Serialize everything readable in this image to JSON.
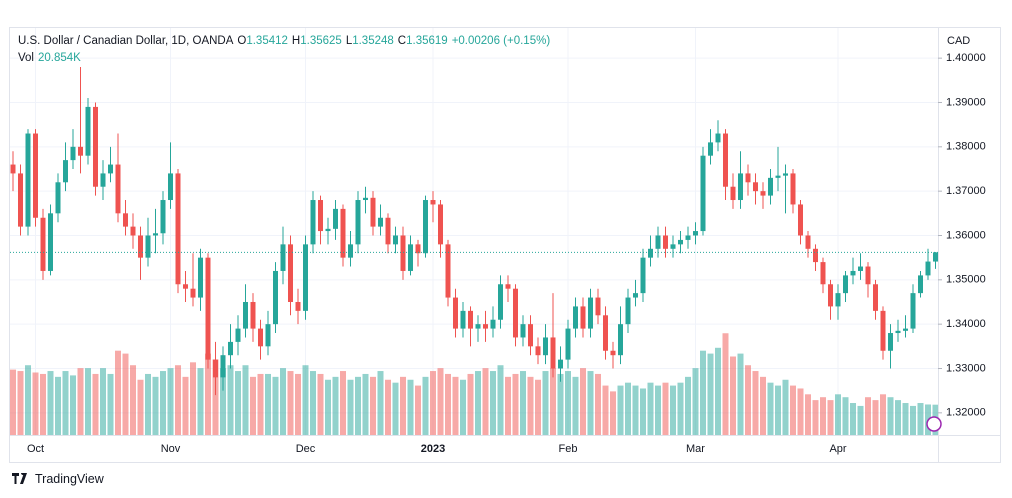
{
  "chart_data": {
    "type": "candlestick",
    "title": "U.S. Dollar / Canadian Dollar, 1D, OANDA",
    "ohlc_labels": [
      "O",
      "H",
      "L",
      "C"
    ],
    "ohlc_values": [
      1.35412,
      1.35625,
      1.35248,
      1.35619
    ],
    "change": "+0.00206 (+0.15%)",
    "volume_label": "Vol",
    "volume_value": "20.854K",
    "currency": "CAD",
    "brand": "TradingView",
    "up_color": "#26a69a",
    "down_color": "#ef5350",
    "grid": true,
    "ylim": [
      1.315,
      1.4068
    ],
    "yticks": [
      {
        "value": 1.32,
        "label": "1.32000"
      },
      {
        "value": 1.33,
        "label": "1.33000"
      },
      {
        "value": 1.34,
        "label": "1.34000"
      },
      {
        "value": 1.35,
        "label": "1.35000"
      },
      {
        "value": 1.36,
        "label": "1.36000"
      },
      {
        "value": 1.37,
        "label": "1.37000"
      },
      {
        "value": 1.38,
        "label": "1.38000"
      },
      {
        "value": 1.39,
        "label": "1.39000"
      },
      {
        "value": 1.4,
        "label": "1.40000"
      }
    ],
    "y2lim": [
      0,
      280
    ],
    "xticks": [
      {
        "value": 3,
        "label": "Oct"
      },
      {
        "value": 21,
        "label": "Nov"
      },
      {
        "value": 39,
        "label": "Dec"
      },
      {
        "value": 56,
        "label": "2023"
      },
      {
        "value": 74,
        "label": "Feb"
      },
      {
        "value": 91,
        "label": "Mar"
      },
      {
        "value": 110,
        "label": "Apr"
      }
    ],
    "open": [
      1.376,
      1.374,
      1.362,
      1.383,
      1.364,
      1.352,
      1.365,
      1.372,
      1.377,
      1.38,
      1.378,
      1.389,
      1.371,
      1.374,
      1.376,
      1.365,
      1.362,
      1.36,
      1.355,
      1.36,
      1.3605,
      1.368,
      1.374,
      1.349,
      1.348,
      1.346,
      1.355,
      1.332,
      1.328,
      1.333,
      1.336,
      1.339,
      1.345,
      1.339,
      1.335,
      1.34,
      1.352,
      1.358,
      1.345,
      1.343,
      1.358,
      1.368,
      1.361,
      1.3615,
      1.366,
      1.355,
      1.358,
      1.368,
      1.3685,
      1.362,
      1.364,
      1.358,
      1.36,
      1.352,
      1.358,
      1.356,
      1.368,
      1.367,
      1.358,
      1.346,
      1.339,
      1.343,
      1.339,
      1.34,
      1.339,
      1.341,
      1.349,
      1.348,
      1.337,
      1.34,
      1.335,
      1.333,
      1.337,
      1.33,
      1.332,
      1.339,
      1.344,
      1.339,
      1.346,
      1.342,
      1.334,
      1.333,
      1.34,
      1.346,
      1.347,
      1.355,
      1.357,
      1.36,
      1.357,
      1.358,
      1.359,
      1.36,
      1.361,
      1.378,
      1.381,
      1.383,
      1.371,
      1.368,
      1.374,
      1.372,
      1.37,
      1.369,
      1.373,
      1.3735,
      1.374,
      1.367,
      1.36,
      1.357,
      1.354,
      1.349,
      1.344,
      1.347,
      1.351,
      1.352,
      1.353,
      1.349,
      1.343,
      1.334,
      1.338,
      1.3385,
      1.339,
      1.347,
      1.351,
      1.35412
    ],
    "high": [
      1.379,
      1.376,
      1.384,
      1.384,
      1.366,
      1.367,
      1.374,
      1.381,
      1.384,
      1.398,
      1.391,
      1.39,
      1.377,
      1.38,
      1.383,
      1.368,
      1.365,
      1.362,
      1.364,
      1.366,
      1.37,
      1.381,
      1.375,
      1.352,
      1.356,
      1.357,
      1.356,
      1.336,
      1.335,
      1.34,
      1.342,
      1.349,
      1.347,
      1.341,
      1.343,
      1.354,
      1.362,
      1.36,
      1.348,
      1.36,
      1.37,
      1.369,
      1.364,
      1.368,
      1.367,
      1.361,
      1.37,
      1.371,
      1.37,
      1.367,
      1.365,
      1.362,
      1.362,
      1.36,
      1.359,
      1.369,
      1.37,
      1.368,
      1.359,
      1.348,
      1.345,
      1.344,
      1.342,
      1.343,
      1.344,
      1.351,
      1.351,
      1.349,
      1.342,
      1.342,
      1.337,
      1.34,
      1.347,
      1.335,
      1.341,
      1.346,
      1.346,
      1.348,
      1.348,
      1.344,
      1.336,
      1.344,
      1.348,
      1.35,
      1.357,
      1.36,
      1.362,
      1.362,
      1.36,
      1.361,
      1.362,
      1.363,
      1.38,
      1.384,
      1.386,
      1.384,
      1.374,
      1.379,
      1.376,
      1.374,
      1.372,
      1.375,
      1.38,
      1.376,
      1.375,
      1.368,
      1.361,
      1.358,
      1.355,
      1.35,
      1.349,
      1.352,
      1.355,
      1.356,
      1.354,
      1.35,
      1.344,
      1.34,
      1.341,
      1.342,
      1.349,
      1.352,
      1.357,
      1.35625
    ],
    "low": [
      1.37,
      1.36,
      1.36,
      1.362,
      1.35,
      1.351,
      1.363,
      1.37,
      1.375,
      1.374,
      1.376,
      1.369,
      1.368,
      1.372,
      1.363,
      1.36,
      1.357,
      1.35,
      1.353,
      1.356,
      1.358,
      1.366,
      1.347,
      1.345,
      1.344,
      1.343,
      1.33,
      1.324,
      1.325,
      1.33,
      1.333,
      1.337,
      1.336,
      1.332,
      1.333,
      1.338,
      1.349,
      1.342,
      1.34,
      1.341,
      1.356,
      1.358,
      1.358,
      1.359,
      1.353,
      1.353,
      1.356,
      1.365,
      1.36,
      1.36,
      1.356,
      1.356,
      1.35,
      1.351,
      1.353,
      1.355,
      1.363,
      1.355,
      1.344,
      1.337,
      1.337,
      1.335,
      1.336,
      1.336,
      1.337,
      1.339,
      1.345,
      1.335,
      1.335,
      1.333,
      1.331,
      1.331,
      1.328,
      1.327,
      1.33,
      1.337,
      1.337,
      1.337,
      1.34,
      1.332,
      1.33,
      1.331,
      1.338,
      1.344,
      1.345,
      1.353,
      1.355,
      1.355,
      1.355,
      1.356,
      1.357,
      1.358,
      1.36,
      1.376,
      1.379,
      1.368,
      1.366,
      1.366,
      1.369,
      1.367,
      1.366,
      1.367,
      1.37,
      1.365,
      1.365,
      1.358,
      1.355,
      1.352,
      1.347,
      1.341,
      1.341,
      1.345,
      1.349,
      1.35,
      1.346,
      1.341,
      1.332,
      1.33,
      1.336,
      1.337,
      1.338,
      1.346,
      1.35,
      1.35248
    ],
    "close": [
      1.374,
      1.362,
      1.383,
      1.364,
      1.352,
      1.365,
      1.372,
      1.377,
      1.38,
      1.378,
      1.389,
      1.371,
      1.374,
      1.376,
      1.365,
      1.362,
      1.36,
      1.355,
      1.36,
      1.3605,
      1.368,
      1.374,
      1.349,
      1.348,
      1.346,
      1.355,
      1.332,
      1.328,
      1.333,
      1.336,
      1.339,
      1.345,
      1.339,
      1.335,
      1.34,
      1.352,
      1.358,
      1.345,
      1.343,
      1.358,
      1.368,
      1.361,
      1.3615,
      1.366,
      1.355,
      1.358,
      1.368,
      1.3685,
      1.362,
      1.364,
      1.358,
      1.36,
      1.352,
      1.358,
      1.356,
      1.368,
      1.367,
      1.358,
      1.346,
      1.339,
      1.343,
      1.339,
      1.34,
      1.339,
      1.341,
      1.349,
      1.348,
      1.337,
      1.34,
      1.335,
      1.333,
      1.337,
      1.33,
      1.332,
      1.339,
      1.344,
      1.339,
      1.346,
      1.342,
      1.334,
      1.333,
      1.34,
      1.346,
      1.347,
      1.355,
      1.357,
      1.36,
      1.357,
      1.358,
      1.359,
      1.36,
      1.361,
      1.378,
      1.381,
      1.383,
      1.371,
      1.368,
      1.374,
      1.372,
      1.37,
      1.369,
      1.373,
      1.3735,
      1.374,
      1.367,
      1.36,
      1.357,
      1.354,
      1.349,
      1.344,
      1.347,
      1.351,
      1.352,
      1.353,
      1.349,
      1.343,
      1.334,
      1.338,
      1.3385,
      1.339,
      1.347,
      1.351,
      1.35412,
      1.35619
    ],
    "volume": [
      45,
      44,
      48,
      43,
      42,
      44,
      40,
      44,
      41,
      46,
      46,
      42,
      46,
      42,
      58,
      56,
      48,
      38,
      42,
      40,
      44,
      46,
      48,
      40,
      50,
      46,
      56,
      52,
      46,
      48,
      44,
      48,
      40,
      42,
      42,
      40,
      46,
      44,
      42,
      48,
      44,
      42,
      38,
      40,
      44,
      38,
      40,
      42,
      40,
      44,
      38,
      36,
      40,
      38,
      34,
      40,
      44,
      46,
      42,
      40,
      38,
      42,
      44,
      46,
      44,
      48,
      40,
      42,
      44,
      40,
      38,
      44,
      46,
      42,
      44,
      40,
      46,
      44,
      42,
      34,
      30,
      34,
      36,
      34,
      32,
      36,
      34,
      36,
      34,
      36,
      40,
      46,
      58,
      56,
      60,
      70,
      54,
      56,
      48,
      44,
      40,
      36,
      34,
      38,
      34,
      32,
      28,
      24,
      26,
      24,
      28,
      26,
      22,
      20,
      26,
      24,
      28,
      26,
      24,
      22,
      20,
      22,
      21,
      20.854
    ]
  }
}
